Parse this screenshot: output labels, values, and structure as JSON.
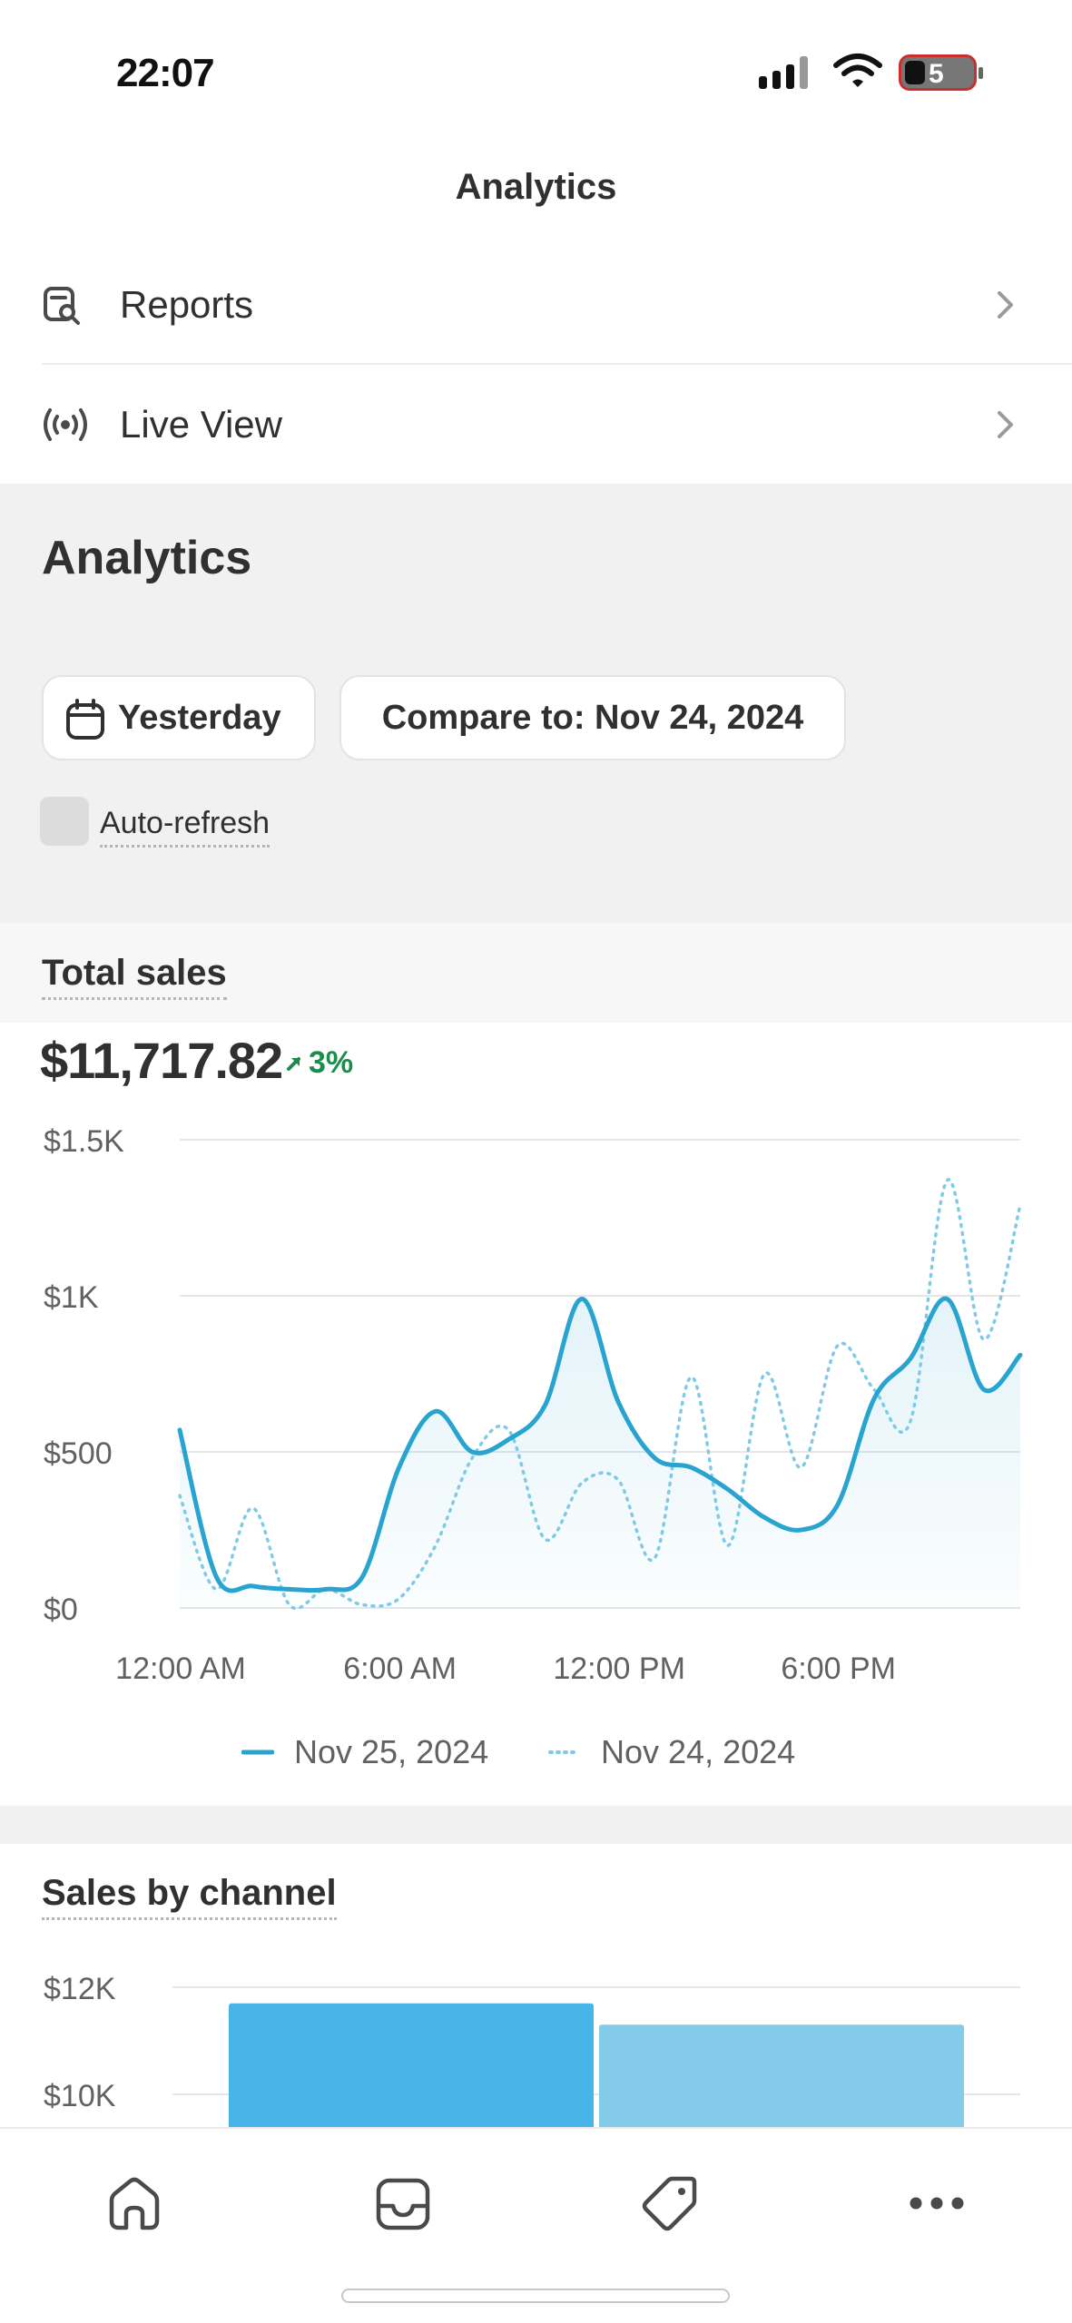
{
  "status_bar": {
    "time": "22:07"
  },
  "header": {
    "title": "Analytics"
  },
  "menu": [
    {
      "label": "Reports",
      "icon": "reports-icon"
    },
    {
      "label": "Live View",
      "icon": "live-view-icon"
    }
  ],
  "analytics": {
    "title": "Analytics",
    "date_button": "Yesterday",
    "compare_button": "Compare to: Nov 24, 2024",
    "auto_refresh_label": "Auto-refresh"
  },
  "total_sales": {
    "title": "Total sales",
    "value": "$11,717.82",
    "delta": "3%",
    "delta_color": "#1a8c4c"
  },
  "chart_data": [
    {
      "type": "line",
      "title": "Total sales",
      "x": [
        "12:00 AM",
        "1:00 AM",
        "2:00 AM",
        "3:00 AM",
        "4:00 AM",
        "5:00 AM",
        "6:00 AM",
        "7:00 AM",
        "8:00 AM",
        "9:00 AM",
        "10:00 AM",
        "11:00 AM",
        "12:00 PM",
        "1:00 PM",
        "2:00 PM",
        "3:00 PM",
        "4:00 PM",
        "5:00 PM",
        "6:00 PM",
        "7:00 PM",
        "8:00 PM",
        "9:00 PM",
        "10:00 PM",
        "11:00 PM"
      ],
      "x_tick_labels": [
        "12:00 AM",
        "6:00 AM",
        "12:00 PM",
        "6:00 PM"
      ],
      "y_tick_labels": [
        "$0",
        "$500",
        "$1K",
        "$1.5K"
      ],
      "ylim": [
        0,
        1500
      ],
      "grid": true,
      "legend_position": "bottom",
      "series": [
        {
          "name": "Nov 25, 2024",
          "style": "solid",
          "color": "#29a3cf",
          "values": [
            570,
            100,
            70,
            60,
            60,
            100,
            450,
            630,
            500,
            540,
            650,
            990,
            660,
            480,
            450,
            380,
            290,
            250,
            330,
            670,
            800,
            990,
            700,
            810
          ]
        },
        {
          "name": "Nov 24, 2024",
          "style": "dotted",
          "color": "#7fcbe6",
          "values": [
            360,
            60,
            320,
            10,
            60,
            10,
            30,
            200,
            480,
            570,
            220,
            400,
            410,
            160,
            740,
            200,
            750,
            450,
            840,
            700,
            600,
            1370,
            860,
            1290
          ]
        }
      ]
    },
    {
      "type": "bar",
      "title": "Sales by channel",
      "y_tick_labels": [
        "$10K",
        "$12K"
      ],
      "ylim": [
        0,
        12000
      ],
      "grid": true,
      "categories": [
        "",
        ""
      ],
      "values": [
        11700,
        11300
      ],
      "colors": [
        "#47b5e8",
        "#84cbe9"
      ]
    }
  ],
  "sales_by_channel": {
    "title": "Sales by channel"
  },
  "tab_bar": {
    "tabs": [
      {
        "icon": "home-icon"
      },
      {
        "icon": "orders-inbox-icon"
      },
      {
        "icon": "products-tag-icon"
      },
      {
        "icon": "more-icon"
      }
    ]
  }
}
